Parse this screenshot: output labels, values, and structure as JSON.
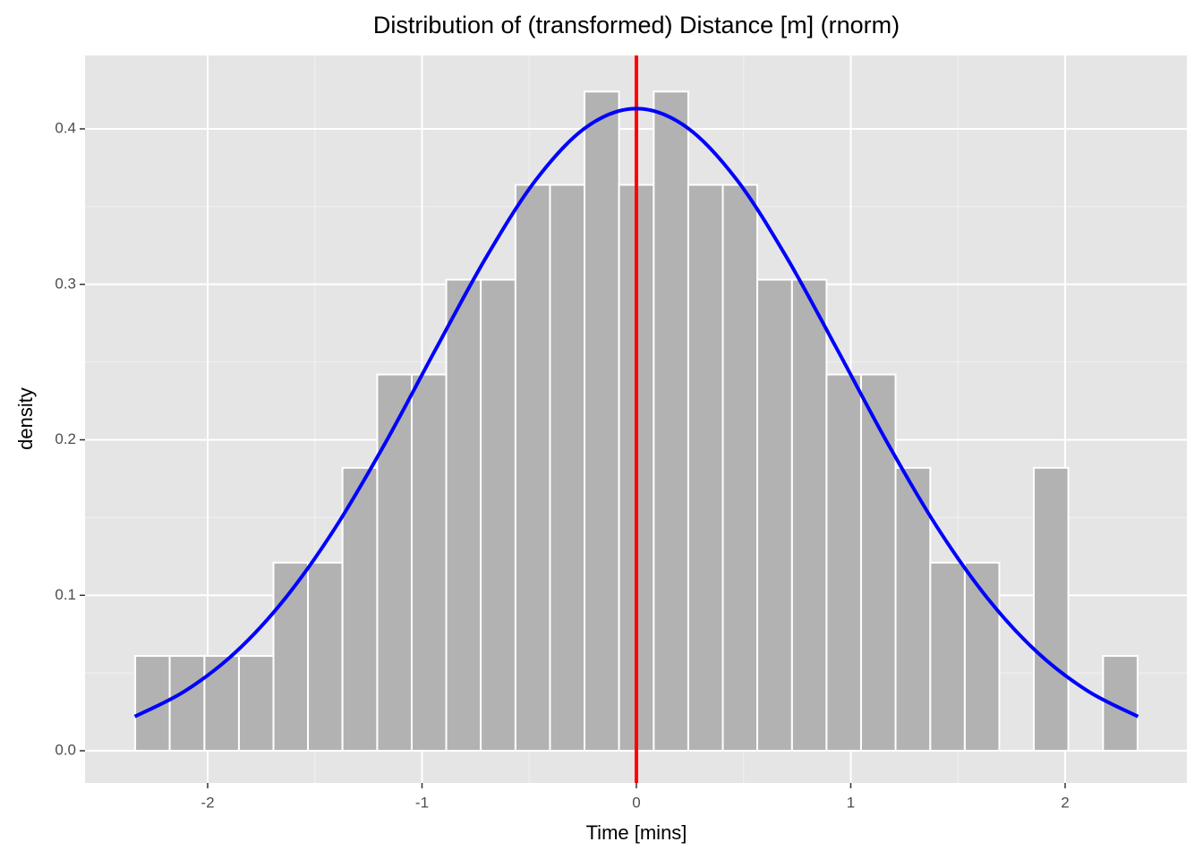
{
  "chart_data": {
    "type": "histogram",
    "title": "Distribution of (transformed) Distance [m] (rnorm)",
    "x_label": "Time [mins]",
    "y_label": "density",
    "bins": [
      -2.338,
      -2.177,
      -2.015,
      -1.854,
      -1.693,
      -1.532,
      -1.371,
      -1.209,
      -1.048,
      -0.887,
      -0.726,
      -0.564,
      -0.403,
      -0.242,
      -0.081,
      0.081,
      0.242,
      0.403,
      0.564,
      0.726,
      0.887,
      1.048,
      1.209,
      1.371,
      1.532,
      1.693,
      1.854,
      2.015,
      2.177,
      2.338
    ],
    "values": [
      0.061,
      0.061,
      0.061,
      0.061,
      0.121,
      0.121,
      0.182,
      0.242,
      0.242,
      0.303,
      0.303,
      0.364,
      0.364,
      0.424,
      0.364,
      0.424,
      0.364,
      0.364,
      0.303,
      0.303,
      0.242,
      0.242,
      0.182,
      0.121,
      0.121,
      0,
      0.182,
      0,
      0.061
    ],
    "color": "#b2b2b2",
    "curve": {
      "color": "#0000ff",
      "x": [
        -2.34,
        -2.106,
        -1.872,
        -1.638,
        -1.404,
        -1.17,
        -0.936,
        -0.702,
        -0.468,
        -0.234,
        0,
        0.234,
        0.468,
        0.702,
        0.936,
        1.17,
        1.404,
        1.638,
        1.872,
        2.106,
        2.34
      ],
      "values": [
        0.022,
        0.0384,
        0.0631,
        0.0981,
        0.1436,
        0.1983,
        0.2583,
        0.3171,
        0.3673,
        0.4011,
        0.413,
        0.4011,
        0.3673,
        0.3171,
        0.2583,
        0.1983,
        0.1436,
        0.0981,
        0.0631,
        0.0384,
        0.022
      ]
    },
    "vline": {
      "x": 0,
      "color": "#ff0000"
    },
    "xlim": [
      -2.572,
      2.568
    ],
    "ylim": [
      -0.0207,
      0.4472
    ],
    "xticks": [
      -2,
      -1,
      0,
      1,
      2
    ],
    "yticks": [
      {
        "value": 0,
        "label": "0.0"
      },
      0.1,
      0.2,
      0.3,
      0.4
    ],
    "grid": true
  }
}
